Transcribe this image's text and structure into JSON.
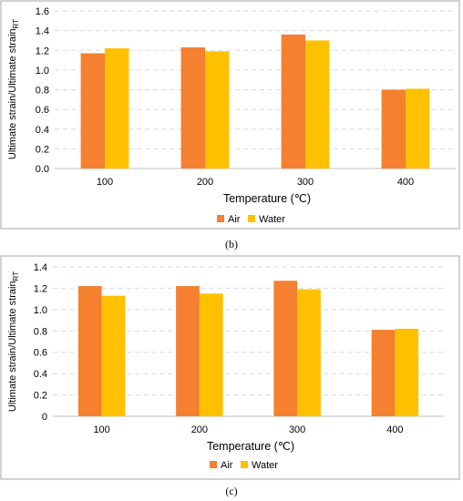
{
  "colors": {
    "air": "#F5802F",
    "water": "#FFC000"
  },
  "chart_data": [
    {
      "type": "bar",
      "panel_label": "(b)",
      "categories": [
        "100",
        "200",
        "300",
        "400"
      ],
      "series": [
        {
          "name": "Air",
          "values": [
            1.17,
            1.23,
            1.36,
            0.8
          ]
        },
        {
          "name": "Water",
          "values": [
            1.22,
            1.19,
            1.3,
            0.81
          ]
        }
      ],
      "xlabel": "Temperature (℃)",
      "ylabel": "Ultimate strain/Ultimate strain",
      "ylabel_sub": "RT",
      "ylim": [
        0,
        1.6
      ],
      "yticks": [
        "0.0",
        "0.2",
        "0.4",
        "0.6",
        "0.8",
        "1.0",
        "1.2",
        "1.4",
        "1.6"
      ],
      "grid": true,
      "legend": "bottom-center"
    },
    {
      "type": "bar",
      "panel_label": "(c)",
      "categories": [
        "100",
        "200",
        "300",
        "400"
      ],
      "series": [
        {
          "name": "Air",
          "values": [
            1.22,
            1.22,
            1.27,
            0.81
          ]
        },
        {
          "name": "Water",
          "values": [
            1.13,
            1.15,
            1.19,
            0.82
          ]
        }
      ],
      "xlabel": "Temperature (℃)",
      "ylabel": "Ultimate strain/Ultimate strain",
      "ylabel_sub": "RT",
      "ylim": [
        0,
        1.4
      ],
      "yticks": [
        "0",
        "0.2",
        "0.4",
        "0.6",
        "0.8",
        "1.0",
        "1.2",
        "1.4"
      ],
      "grid": true,
      "legend": "bottom-center"
    }
  ]
}
